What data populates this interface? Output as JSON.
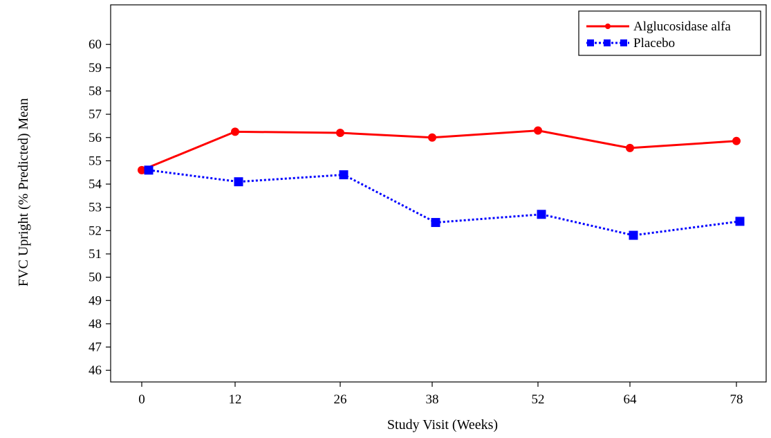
{
  "chart_data": {
    "type": "line",
    "title": "",
    "xlabel": "Study Visit (Weeks)",
    "ylabel": "FVC Upright (% Predicted) Mean",
    "x_ticks": [
      "0",
      "12",
      "26",
      "38",
      "52",
      "64",
      "78"
    ],
    "y_ticks": [
      "46",
      "47",
      "48",
      "49",
      "50",
      "51",
      "52",
      "53",
      "54",
      "55",
      "56",
      "57",
      "58",
      "59",
      "60"
    ],
    "ylim": [
      45.5,
      61.7
    ],
    "grid": false,
    "legend_position": "top-right",
    "series": [
      {
        "name": "Alglucosidase alfa",
        "color": "#ff0000",
        "line_style": "solid",
        "marker": "circle",
        "x": [
          0,
          12,
          26,
          38,
          52,
          64,
          78
        ],
        "y": [
          54.6,
          56.25,
          56.2,
          56.0,
          56.3,
          55.55,
          55.85
        ]
      },
      {
        "name": "Placebo",
        "color": "#0000ff",
        "line_style": "dotted",
        "marker": "square",
        "x": [
          0,
          12,
          26,
          38,
          52,
          64,
          78
        ],
        "y": [
          54.6,
          54.1,
          54.4,
          52.35,
          52.7,
          51.8,
          52.4
        ]
      }
    ]
  }
}
